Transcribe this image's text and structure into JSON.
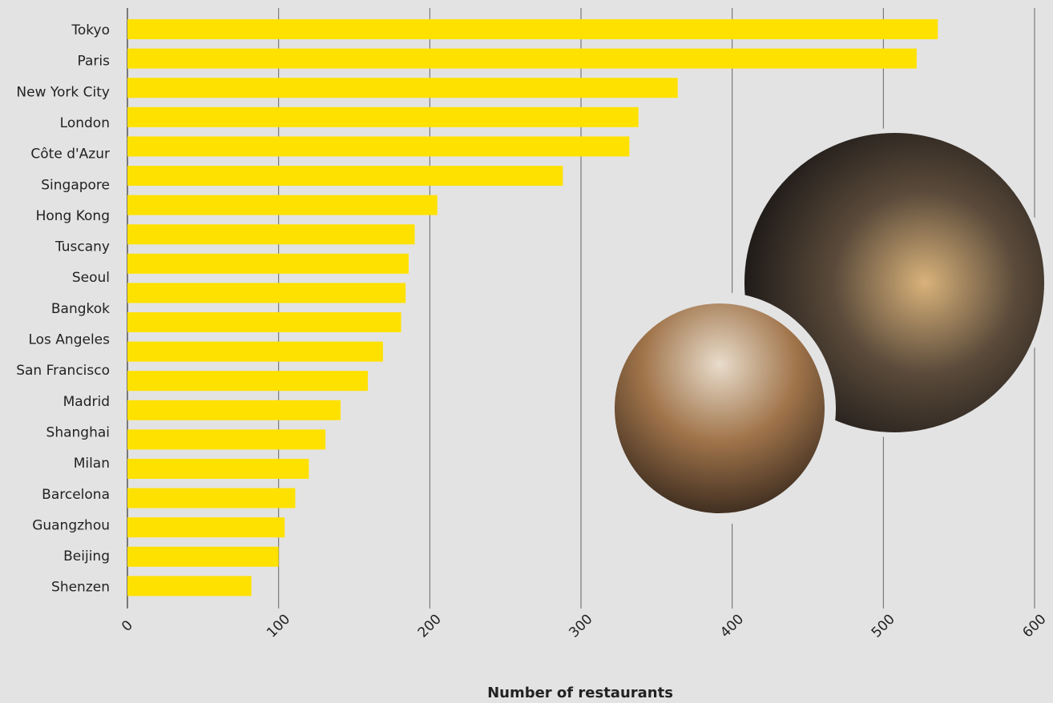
{
  "chart_data": {
    "type": "bar",
    "orientation": "horizontal",
    "x_label": "Number of restaurants",
    "categories": [
      "Tokyo",
      "Paris",
      "New York City",
      "London",
      "Côte d'Azur",
      "Singapore",
      "Hong Kong",
      "Tuscany",
      "Seoul",
      "Bangkok",
      "Los Angeles",
      "San Francisco",
      "Madrid",
      "Shanghai",
      "Milan",
      "Barcelona",
      "Guangzhou",
      "Beijing",
      "Shenzen",
      null
    ],
    "values": [
      536,
      522,
      364,
      338,
      332,
      288,
      205,
      190,
      186,
      184,
      181,
      169,
      159,
      141,
      131,
      120,
      111,
      104,
      100,
      82
    ],
    "color": "#ffe100",
    "xlim": [
      0,
      600
    ],
    "xticks": [
      0,
      100,
      200,
      300,
      400,
      500,
      600
    ],
    "grid": true
  }
}
